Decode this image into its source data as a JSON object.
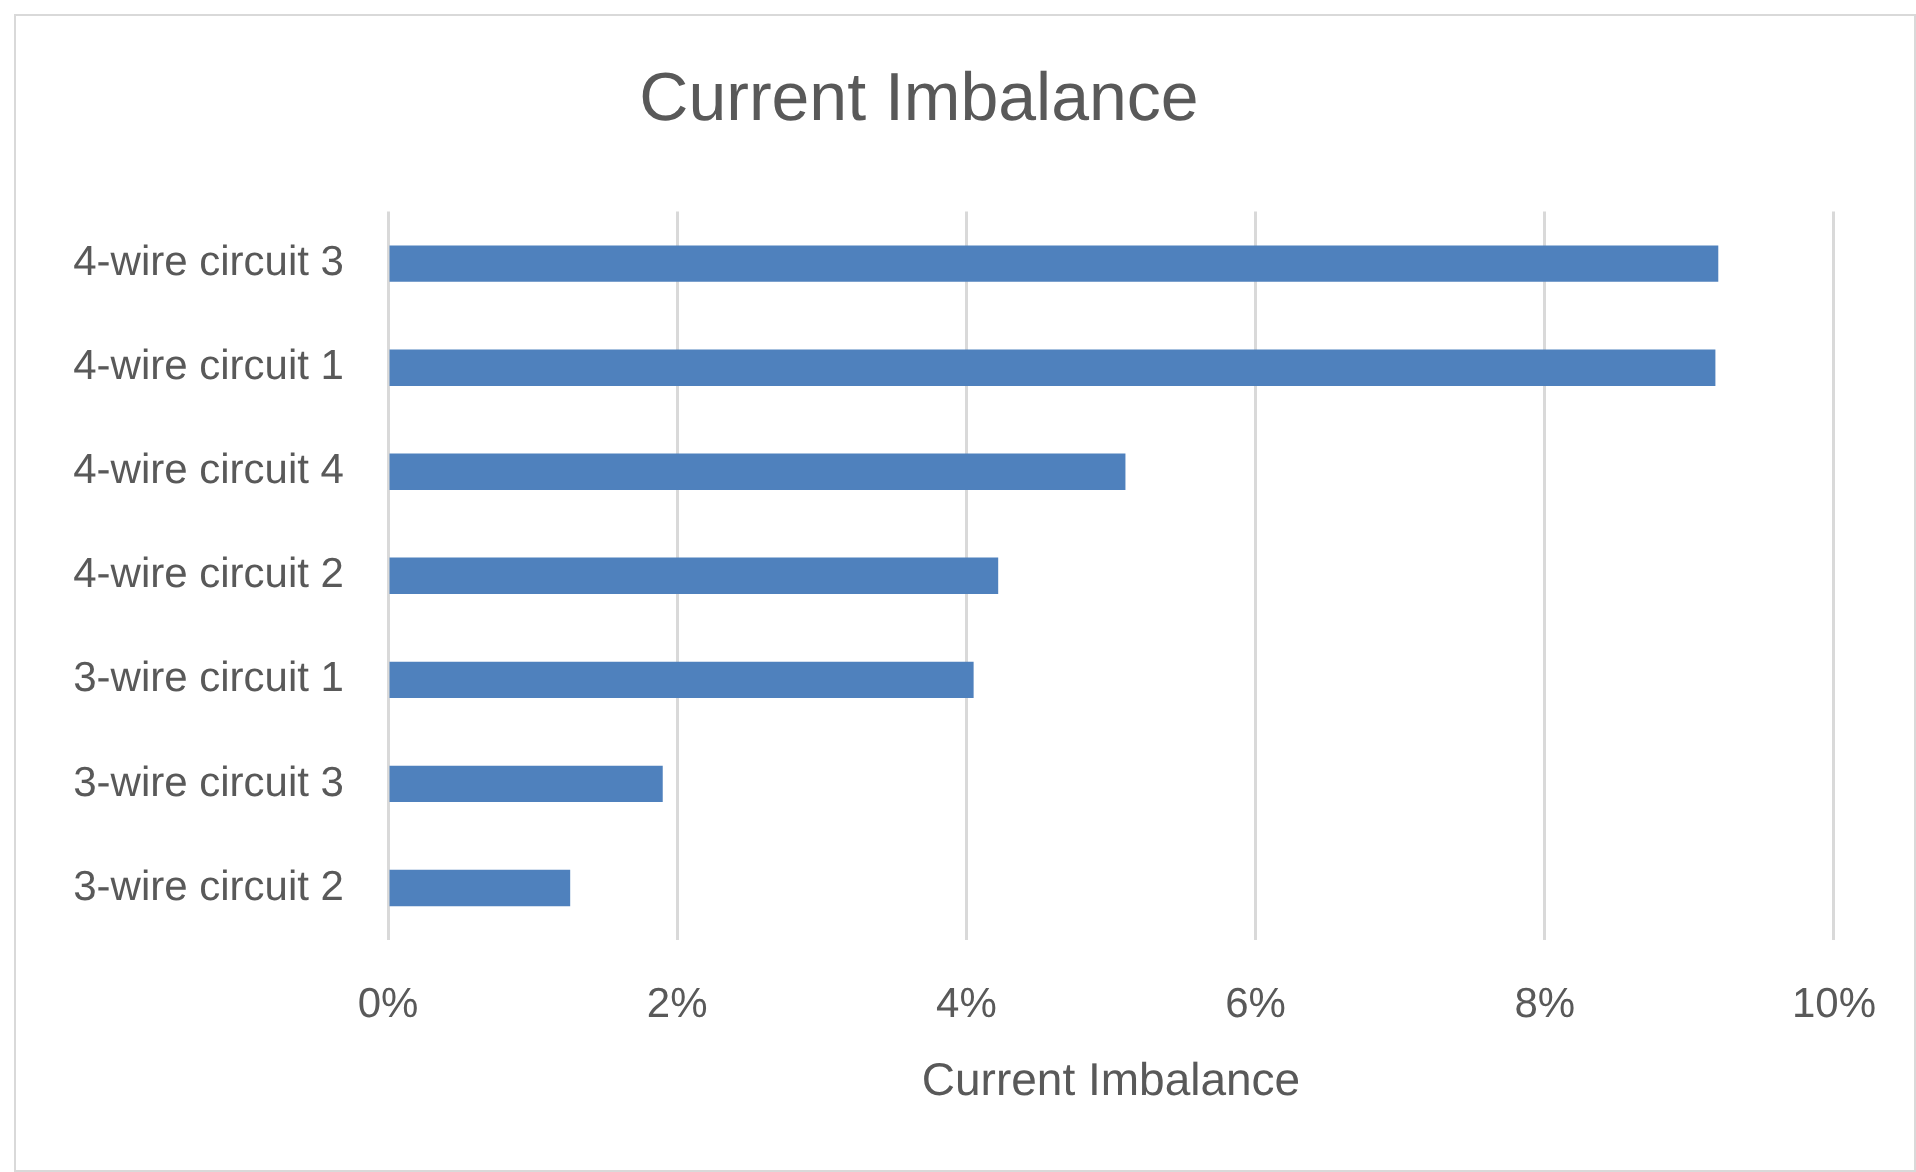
{
  "chart_data": {
    "type": "bar",
    "orientation": "horizontal",
    "title": "Current Imbalance",
    "xlabel": "Current Imbalance",
    "categories": [
      "4-wire circuit 3",
      "4-wire circuit 1",
      "4-wire circuit 4",
      "4-wire circuit 2",
      "3-wire circuit 1",
      "3-wire circuit 3",
      "3-wire circuit 2"
    ],
    "values": [
      9.2,
      9.18,
      5.1,
      4.22,
      4.05,
      1.9,
      1.26
    ],
    "color": "#4f81bd",
    "xlim": [
      0,
      10
    ],
    "xticks": [
      {
        "value": 0,
        "label": "0%"
      },
      {
        "value": 2,
        "label": "2%"
      },
      {
        "value": 4,
        "label": "4%"
      },
      {
        "value": 6,
        "label": "6%"
      },
      {
        "value": 8,
        "label": "8%"
      },
      {
        "value": 10,
        "label": "10%"
      }
    ],
    "grid": "x"
  }
}
